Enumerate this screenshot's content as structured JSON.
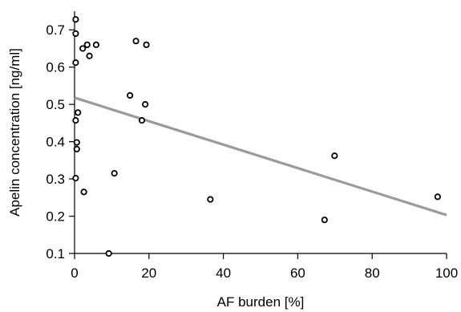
{
  "chart_data": {
    "type": "scatter",
    "title": "",
    "xlabel": "AF burden [%]",
    "ylabel": "Apelin concentration [ng/ml]",
    "xlim": [
      0,
      100
    ],
    "ylim": [
      0.1,
      0.75
    ],
    "xticks": [
      "0",
      "20",
      "40",
      "60",
      "80",
      "100"
    ],
    "yticks": [
      "0.1",
      "0.2",
      "0.3",
      "0.4",
      "0.5",
      "0.6",
      "0.7"
    ],
    "grid": false,
    "legend": "none",
    "colors": {
      "points": "#000000",
      "trend": "#9a9a9a",
      "axis": "#000000"
    },
    "points": [
      {
        "x": 0.3,
        "y": 0.728
      },
      {
        "x": 0.3,
        "y": 0.69
      },
      {
        "x": 0.3,
        "y": 0.612
      },
      {
        "x": 0.3,
        "y": 0.457
      },
      {
        "x": 0.3,
        "y": 0.302
      },
      {
        "x": 0.6,
        "y": 0.398
      },
      {
        "x": 0.6,
        "y": 0.38
      },
      {
        "x": 0.9,
        "y": 0.478
      },
      {
        "x": 2.2,
        "y": 0.65
      },
      {
        "x": 2.5,
        "y": 0.265
      },
      {
        "x": 3.4,
        "y": 0.66
      },
      {
        "x": 4.0,
        "y": 0.63
      },
      {
        "x": 5.8,
        "y": 0.66
      },
      {
        "x": 9.2,
        "y": 0.1
      },
      {
        "x": 10.7,
        "y": 0.315
      },
      {
        "x": 14.9,
        "y": 0.524
      },
      {
        "x": 16.5,
        "y": 0.67
      },
      {
        "x": 18.1,
        "y": 0.457
      },
      {
        "x": 19.0,
        "y": 0.5
      },
      {
        "x": 19.3,
        "y": 0.66
      },
      {
        "x": 36.5,
        "y": 0.245
      },
      {
        "x": 67.2,
        "y": 0.19
      },
      {
        "x": 69.9,
        "y": 0.362
      },
      {
        "x": 97.6,
        "y": 0.252
      }
    ],
    "trendline": {
      "x": [
        0,
        100
      ],
      "y": [
        0.518,
        0.203
      ]
    }
  }
}
